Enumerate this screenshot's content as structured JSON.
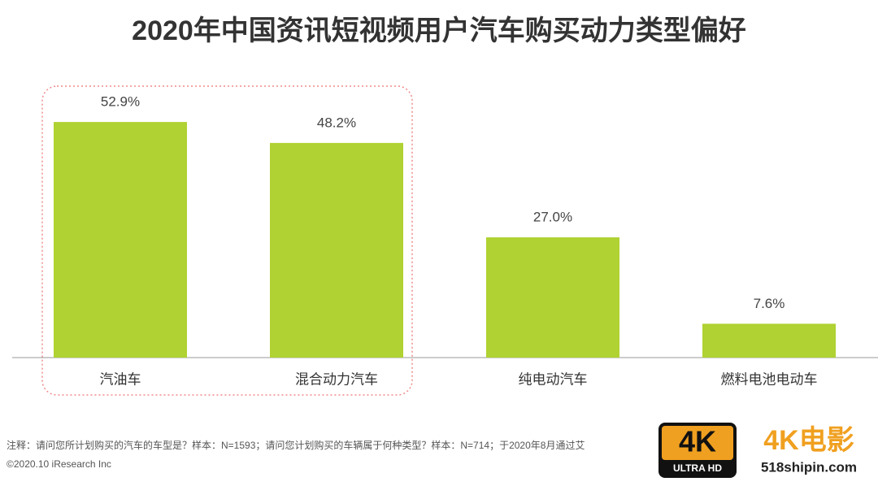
{
  "chart_data": {
    "type": "bar",
    "title": "2020年中国资讯短视频用户汽车购买动力类型偏好",
    "categories": [
      "汽油车",
      "混合动力汽车",
      "纯电动汽车",
      "燃料电池电动车"
    ],
    "values": [
      52.9,
      48.2,
      27.0,
      7.6
    ],
    "value_labels": [
      "52.9%",
      "48.2%",
      "27.0%",
      "7.6%"
    ],
    "color": "#b0d232",
    "note": "注释：请问您所计划购买的汽车的车型是？样本：N=1593；请问您计划购买的车辆属于何种类型？样本：N=714；于2020年8月通过艾",
    "copyright": "©2020.10 iResearch Inc"
  },
  "watermark": {
    "badge_main": "4K",
    "badge_sub": "ULTRA HD",
    "brand": "4K电影",
    "site": "518shipin.com"
  }
}
